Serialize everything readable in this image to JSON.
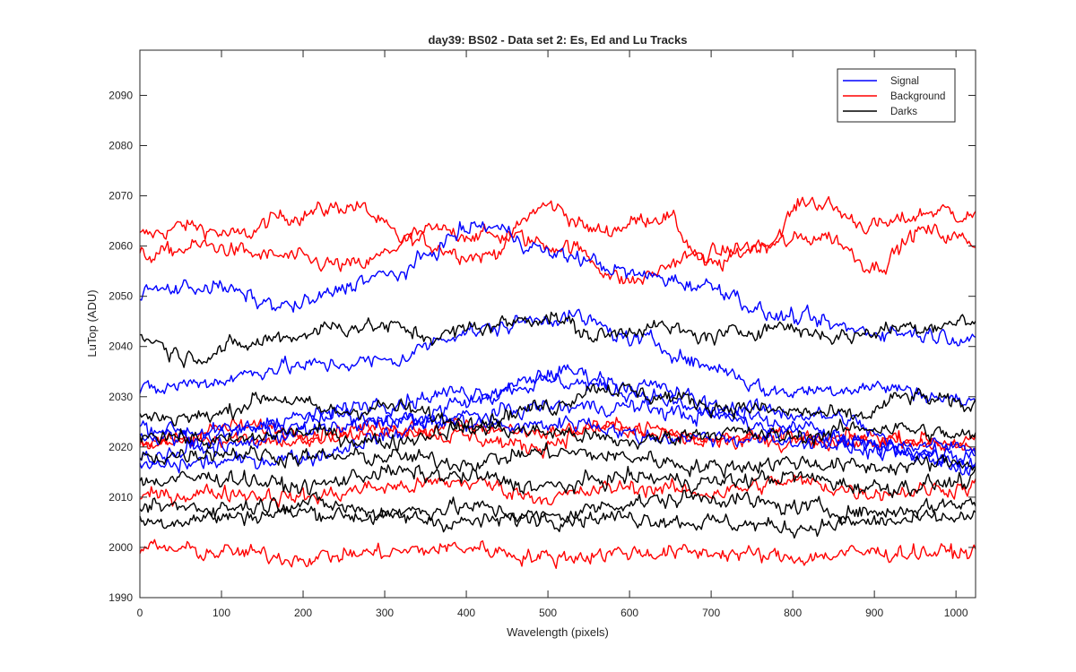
{
  "chart_data": {
    "type": "line",
    "title": "day39: BS02 - Data set 2: Es, Ed and Lu Tracks",
    "xlabel": "Wavelength (pixels)",
    "ylabel": "LuTop (ADU)",
    "xlim": [
      0,
      1024
    ],
    "ylim": [
      1990,
      2099
    ],
    "xticks": [
      0,
      100,
      200,
      300,
      400,
      500,
      600,
      700,
      800,
      900,
      1000
    ],
    "yticks": [
      1990,
      2000,
      2010,
      2020,
      2030,
      2040,
      2050,
      2060,
      2070,
      2080,
      2090
    ],
    "grid": false,
    "legend_position": "top-right",
    "noise_amplitude": 1.6,
    "series_groups": [
      {
        "name": "Signal",
        "color": "#0000ff",
        "tracks": [
          {
            "x": [
              0,
              80,
              180,
              300,
              420,
              520,
              620,
              700,
              780,
              900,
              1024
            ],
            "y": [
              2051,
              2052,
              2048,
              2054,
              2064,
              2058,
              2054,
              2052,
              2046,
              2043,
              2042
            ]
          },
          {
            "x": [
              0,
              80,
              180,
              300,
              400,
              520,
              620,
              700,
              780,
              900,
              1024
            ],
            "y": [
              2031,
              2033,
              2036,
              2037,
              2043,
              2046,
              2041,
              2036,
              2031,
              2032,
              2029
            ]
          },
          {
            "x": [
              0,
              100,
              200,
              300,
              400,
              520,
              600,
              700,
              800,
              900,
              1024
            ],
            "y": [
              2024,
              2023,
              2026,
              2029,
              2031,
              2033,
              2031,
              2027,
              2024,
              2020,
              2018
            ]
          },
          {
            "x": [
              0,
              100,
              200,
              300,
              400,
              520,
              620,
              720,
              850,
              950,
              1024
            ],
            "y": [
              2016,
              2017,
              2018,
              2022,
              2029,
              2035,
              2032,
              2028,
              2026,
              2019,
              2017
            ]
          },
          {
            "x": [
              0,
              80,
              160,
              260,
              380,
              460,
              540,
              620,
              700,
              800,
              1024
            ],
            "y": [
              2022,
              2022,
              2024,
              2026,
              2025,
              2024,
              2025,
              2022,
              2022,
              2021,
              2020
            ]
          },
          {
            "x": [
              0,
              100,
              200,
              300,
              400,
              500,
              600,
              700,
              800,
              900,
              1024
            ],
            "y": [
              2018,
              2020,
              2023,
              2025,
              2026,
              2028,
              2028,
              2026,
              2023,
              2019,
              2016
            ]
          }
        ]
      },
      {
        "name": "Background",
        "color": "#ff0000",
        "tracks": [
          {
            "x": [
              0,
              60,
              120,
              180,
              260,
              330,
              420,
              500,
              560,
              640,
              700,
              760,
              820,
              900,
              980,
              1024
            ],
            "y": [
              2062,
              2064,
              2062,
              2066,
              2068,
              2061,
              2058,
              2068,
              2063,
              2066,
              2056,
              2060,
              2069,
              2064,
              2067,
              2066
            ]
          },
          {
            "x": [
              0,
              80,
              160,
              260,
              360,
              440,
              520,
              600,
              680,
              760,
              840,
              900,
              960,
              1024
            ],
            "y": [
              2058,
              2060,
              2058,
              2056,
              2063,
              2062,
              2060,
              2053,
              2058,
              2060,
              2062,
              2056,
              2063,
              2061
            ]
          },
          {
            "x": [
              0,
              100,
              200,
              300,
              400,
              500,
              600,
              700,
              800,
              900,
              1024
            ],
            "y": [
              2021,
              2022,
              2021,
              2023,
              2024,
              2023,
              2024,
              2022,
              2021,
              2022,
              2021
            ]
          },
          {
            "x": [
              0,
              120,
              220,
              300,
              400,
              480,
              560,
              680,
              780,
              880,
              1024
            ],
            "y": [
              2020,
              2024,
              2023,
              2024,
              2022,
              2020,
              2024,
              2021,
              2022,
              2021,
              2020
            ]
          },
          {
            "x": [
              0,
              100,
              200,
              300,
              400,
              500,
              600,
              700,
              800,
              900,
              1024
            ],
            "y": [
              2010,
              2011,
              2010,
              2012,
              2013,
              2010,
              2012,
              2011,
              2013,
              2011,
              2012
            ]
          },
          {
            "x": [
              0,
              100,
              200,
              300,
              400,
              500,
              600,
              700,
              800,
              900,
              1024
            ],
            "y": [
              2000,
              1999,
              1998,
              1999,
              2000,
              1998,
              1999,
              1999,
              1998,
              1999,
              1999
            ]
          }
        ]
      },
      {
        "name": "Darks",
        "color": "#000000",
        "tracks": [
          {
            "x": [
              0,
              60,
              120,
              180,
              240,
              300,
              360,
              420,
              500,
              560,
              620,
              700,
              780,
              860,
              940,
              1024
            ],
            "y": [
              2042,
              2038,
              2040,
              2042,
              2044,
              2044,
              2042,
              2044,
              2046,
              2042,
              2044,
              2042,
              2044,
              2042,
              2044,
              2045
            ]
          },
          {
            "x": [
              0,
              80,
              160,
              240,
              300,
              400,
              500,
              560,
              640,
              720,
              800,
              880,
              940,
              1024
            ],
            "y": [
              2026,
              2026,
              2030,
              2027,
              2028,
              2025,
              2028,
              2032,
              2030,
              2028,
              2027,
              2026,
              2030,
              2028
            ]
          },
          {
            "x": [
              0,
              100,
              200,
              300,
              400,
              500,
              600,
              700,
              800,
              900,
              1024
            ],
            "y": [
              2023,
              2021,
              2023,
              2021,
              2024,
              2023,
              2021,
              2023,
              2022,
              2024,
              2022
            ]
          },
          {
            "x": [
              0,
              100,
              200,
              300,
              400,
              500,
              600,
              700,
              800,
              900,
              1024
            ],
            "y": [
              2018,
              2019,
              2018,
              2018,
              2017,
              2019,
              2018,
              2016,
              2017,
              2016,
              2017
            ]
          },
          {
            "x": [
              0,
              100,
              200,
              300,
              400,
              500,
              600,
              700,
              800,
              900,
              1024
            ],
            "y": [
              2013,
              2014,
              2012,
              2015,
              2014,
              2012,
              2014,
              2013,
              2014,
              2012,
              2013
            ]
          },
          {
            "x": [
              0,
              100,
              200,
              300,
              400,
              500,
              600,
              700,
              800,
              900,
              1024
            ],
            "y": [
              2008,
              2008,
              2009,
              2007,
              2008,
              2006,
              2009,
              2010,
              2008,
              2007,
              2009
            ]
          },
          {
            "x": [
              0,
              100,
              200,
              300,
              400,
              500,
              600,
              700,
              800,
              900,
              1024
            ],
            "y": [
              2005,
              2006,
              2007,
              2006,
              2005,
              2006,
              2006,
              2005,
              2004,
              2005,
              2006
            ]
          }
        ]
      }
    ]
  }
}
